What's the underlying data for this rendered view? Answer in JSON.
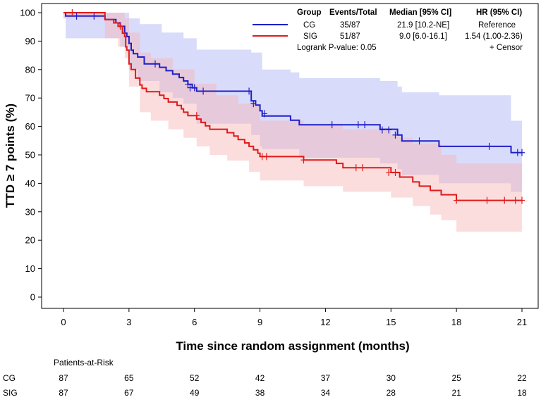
{
  "chart_data": {
    "type": "kaplan-meier",
    "ylabel": "TTD ≥ 7 points (%)",
    "xlabel": "Time since random assignment (months)",
    "xlim": [
      0,
      21
    ],
    "ylim": [
      0,
      100
    ],
    "xticks": [
      0,
      3,
      6,
      9,
      12,
      15,
      18,
      21
    ],
    "yticks": [
      0,
      10,
      20,
      30,
      40,
      50,
      60,
      70,
      80,
      90,
      100
    ],
    "legend": {
      "headers": [
        "Group",
        "Events/Total",
        "Median [95% CI]",
        "HR (95% CI)"
      ],
      "rows": [
        {
          "group": "CG",
          "events": "35/87",
          "median": "21.9 [10.2-NE]",
          "hr": "Reference"
        },
        {
          "group": "SIG",
          "events": "51/87",
          "median": "9.0 [6.0-16.1]",
          "hr": "1.54 (1.00-2.36)"
        }
      ],
      "logrank": "Logrank P-value: 0.05",
      "censor": "+ Censor"
    },
    "series": [
      {
        "name": "CG",
        "color": "#1f1fc8",
        "band_color": "#aab0f5",
        "steps": [
          [
            0,
            100
          ],
          [
            0.1,
            98.8
          ],
          [
            1.9,
            97.6
          ],
          [
            2.4,
            96.4
          ],
          [
            2.6,
            95.2
          ],
          [
            2.8,
            92.8
          ],
          [
            2.9,
            91.6
          ],
          [
            3.0,
            89.2
          ],
          [
            3.1,
            86.8
          ],
          [
            3.2,
            85.6
          ],
          [
            3.4,
            84.4
          ],
          [
            3.7,
            82.0
          ],
          [
            4.4,
            80.8
          ],
          [
            4.7,
            79.6
          ],
          [
            5.0,
            78.4
          ],
          [
            5.3,
            77.2
          ],
          [
            5.5,
            76.0
          ],
          [
            5.7,
            74.8
          ],
          [
            5.9,
            73.6
          ],
          [
            6.1,
            72.4
          ],
          [
            8.6,
            69.0
          ],
          [
            8.8,
            67.5
          ],
          [
            9.0,
            65.5
          ],
          [
            9.1,
            63.7
          ],
          [
            10.4,
            62.2
          ],
          [
            10.8,
            60.6
          ],
          [
            14.5,
            59.0
          ],
          [
            15.3,
            57.0
          ],
          [
            15.5,
            54.9
          ],
          [
            17.2,
            53.0
          ],
          [
            20.5,
            50.8
          ]
        ],
        "upper": [
          [
            0,
            100
          ],
          [
            1,
            100
          ],
          [
            2.5,
            100
          ],
          [
            3,
            98
          ],
          [
            3.5,
            96
          ],
          [
            4.5,
            93
          ],
          [
            5.5,
            91
          ],
          [
            6.1,
            87
          ],
          [
            8.6,
            86
          ],
          [
            9.1,
            80
          ],
          [
            10.4,
            79
          ],
          [
            10.8,
            77
          ],
          [
            14.5,
            76
          ],
          [
            15.3,
            74
          ],
          [
            15.5,
            72
          ],
          [
            17.2,
            71
          ],
          [
            20.5,
            62
          ],
          [
            21,
            62
          ]
        ],
        "lower": [
          [
            0,
            98
          ],
          [
            0.1,
            91
          ],
          [
            1.9,
            91
          ],
          [
            2.6,
            88
          ],
          [
            3.0,
            80
          ],
          [
            3.4,
            76
          ],
          [
            4.4,
            72
          ],
          [
            5.0,
            70
          ],
          [
            5.5,
            68
          ],
          [
            6.1,
            61
          ],
          [
            8.6,
            57
          ],
          [
            9.0,
            53
          ],
          [
            9.1,
            52
          ],
          [
            10.8,
            49
          ],
          [
            14.5,
            47
          ],
          [
            15.3,
            45
          ],
          [
            15.5,
            43
          ],
          [
            17.2,
            40
          ],
          [
            20.5,
            37
          ],
          [
            21,
            37
          ]
        ],
        "censors": [
          [
            0.6,
            98.8
          ],
          [
            1.4,
            98.8
          ],
          [
            4.2,
            82.0
          ],
          [
            5.7,
            74.8
          ],
          [
            5.8,
            73.6
          ],
          [
            6.0,
            73.6
          ],
          [
            6.4,
            72.4
          ],
          [
            8.5,
            72.4
          ],
          [
            8.7,
            68.0
          ],
          [
            9.2,
            64.5
          ],
          [
            12.3,
            60.6
          ],
          [
            13.5,
            60.6
          ],
          [
            13.8,
            60.6
          ],
          [
            14.6,
            58.8
          ],
          [
            14.9,
            58.8
          ],
          [
            15.2,
            57.0
          ],
          [
            16.3,
            54.9
          ],
          [
            19.5,
            53.0
          ],
          [
            20.8,
            50.8
          ],
          [
            21.0,
            50.8
          ]
        ]
      },
      {
        "name": "SIG",
        "color": "#e01a1a",
        "band_color": "#f7b3b3",
        "steps": [
          [
            0,
            100
          ],
          [
            1.9,
            97.6
          ],
          [
            2.3,
            96.4
          ],
          [
            2.5,
            95.2
          ],
          [
            2.7,
            92.8
          ],
          [
            2.8,
            91.6
          ],
          [
            2.85,
            88.0
          ],
          [
            2.9,
            86.8
          ],
          [
            3.0,
            82.0
          ],
          [
            3.1,
            80.0
          ],
          [
            3.3,
            77.0
          ],
          [
            3.5,
            74.6
          ],
          [
            3.6,
            73.4
          ],
          [
            3.8,
            72.2
          ],
          [
            4.4,
            71.0
          ],
          [
            4.6,
            69.8
          ],
          [
            4.8,
            68.6
          ],
          [
            5.2,
            67.4
          ],
          [
            5.4,
            66.2
          ],
          [
            5.5,
            65.0
          ],
          [
            5.7,
            63.8
          ],
          [
            6.1,
            62.6
          ],
          [
            6.3,
            61.4
          ],
          [
            6.5,
            60.2
          ],
          [
            6.7,
            59.0
          ],
          [
            7.5,
            57.8
          ],
          [
            7.8,
            56.6
          ],
          [
            8.0,
            55.4
          ],
          [
            8.3,
            54.2
          ],
          [
            8.5,
            53.0
          ],
          [
            8.7,
            51.8
          ],
          [
            8.9,
            50.6
          ],
          [
            9.0,
            49.4
          ],
          [
            11.0,
            48.2
          ],
          [
            12.5,
            47.0
          ],
          [
            12.8,
            45.5
          ],
          [
            15.0,
            43.8
          ],
          [
            15.4,
            42.2
          ],
          [
            16.0,
            40.5
          ],
          [
            16.3,
            39.0
          ],
          [
            16.8,
            37.5
          ],
          [
            17.3,
            36.0
          ],
          [
            18.0,
            34.0
          ]
        ],
        "upper": [
          [
            0,
            100
          ],
          [
            2.5,
            100
          ],
          [
            2.8,
            98
          ],
          [
            3.0,
            93
          ],
          [
            3.5,
            86
          ],
          [
            4.0,
            84
          ],
          [
            5.0,
            80
          ],
          [
            6.0,
            75
          ],
          [
            7.0,
            71
          ],
          [
            8.0,
            68
          ],
          [
            9.0,
            62
          ],
          [
            11.0,
            61
          ],
          [
            12.8,
            59
          ],
          [
            15.0,
            57
          ],
          [
            15.4,
            56
          ],
          [
            16.0,
            54
          ],
          [
            17.3,
            50
          ],
          [
            18.0,
            47
          ],
          [
            21,
            45
          ]
        ],
        "lower": [
          [
            0,
            98
          ],
          [
            1.9,
            91
          ],
          [
            2.5,
            88
          ],
          [
            2.8,
            84
          ],
          [
            3.0,
            74
          ],
          [
            3.5,
            65
          ],
          [
            4.0,
            62
          ],
          [
            4.8,
            59
          ],
          [
            5.5,
            56
          ],
          [
            6.1,
            53
          ],
          [
            6.7,
            50
          ],
          [
            7.5,
            48
          ],
          [
            8.5,
            44
          ],
          [
            9.0,
            41
          ],
          [
            11.0,
            39
          ],
          [
            12.8,
            37
          ],
          [
            15.0,
            35
          ],
          [
            16.0,
            32
          ],
          [
            16.8,
            29
          ],
          [
            17.3,
            27
          ],
          [
            18.0,
            23
          ],
          [
            21,
            23
          ]
        ],
        "censors": [
          [
            0.4,
            100
          ],
          [
            2.6,
            95.2
          ],
          [
            6.1,
            63.8
          ],
          [
            9.1,
            49.4
          ],
          [
            9.3,
            49.4
          ],
          [
            11.0,
            48.2
          ],
          [
            13.4,
            45.5
          ],
          [
            13.7,
            45.5
          ],
          [
            14.9,
            43.8
          ],
          [
            15.2,
            43.8
          ],
          [
            18.0,
            34.0
          ],
          [
            19.4,
            34.0
          ],
          [
            20.2,
            34.0
          ],
          [
            20.7,
            34.0
          ],
          [
            21.0,
            34.0
          ]
        ]
      }
    ],
    "risk_table": {
      "title": "Patients-at-Risk",
      "times": [
        0,
        3,
        6,
        9,
        12,
        15,
        18,
        21
      ],
      "rows": [
        {
          "label": "CG",
          "values": [
            87,
            65,
            52,
            42,
            37,
            30,
            25,
            22
          ]
        },
        {
          "label": "SIG",
          "values": [
            87,
            67,
            49,
            38,
            34,
            28,
            21,
            18
          ]
        }
      ]
    }
  }
}
